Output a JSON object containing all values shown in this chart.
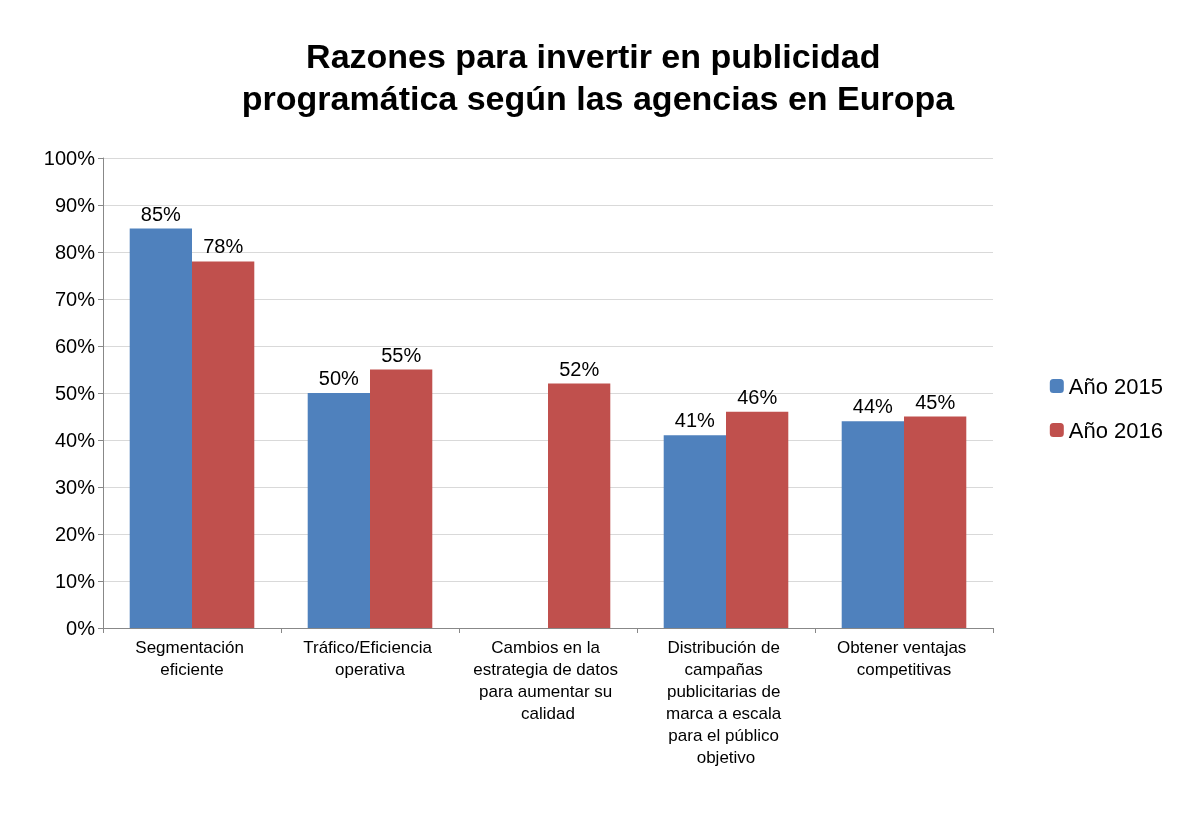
{
  "chart_data": {
    "type": "bar",
    "title": "Razones para invertir en publicidad programática según las agencias en Europa",
    "categories": [
      "Segmentación eficiente",
      "Tráfico/Eficiencia operativa",
      "Cambios en la estrategia de datos para aumentar su calidad",
      "Distribución de campañas publicitarias de marca a escala para el público objetivo",
      "Obtener ventajas competitivas"
    ],
    "series": [
      {
        "name": "Año 2015",
        "color": "#4f81bd",
        "values": [
          85,
          50,
          null,
          41,
          44
        ],
        "value_labels": [
          "85%",
          "50%",
          null,
          "41%",
          "44%"
        ]
      },
      {
        "name": "Año 2016",
        "color": "#c0504d",
        "values": [
          78,
          55,
          52,
          46,
          45
        ],
        "value_labels": [
          "78%",
          "55%",
          "52%",
          "46%",
          "45%"
        ]
      }
    ],
    "ylim": [
      0,
      100
    ],
    "yticks": [
      {
        "value": 0,
        "label": "0%"
      },
      {
        "value": 10,
        "label": "10%"
      },
      {
        "value": 20,
        "label": "20%"
      },
      {
        "value": 30,
        "label": "30%"
      },
      {
        "value": 40,
        "label": "40%"
      },
      {
        "value": 50,
        "label": "50%"
      },
      {
        "value": 60,
        "label": "60%"
      },
      {
        "value": 70,
        "label": "70%"
      },
      {
        "value": 80,
        "label": "80%"
      },
      {
        "value": 90,
        "label": "90%"
      },
      {
        "value": 100,
        "label": "100%"
      }
    ],
    "grid": "y",
    "legend": "right"
  }
}
